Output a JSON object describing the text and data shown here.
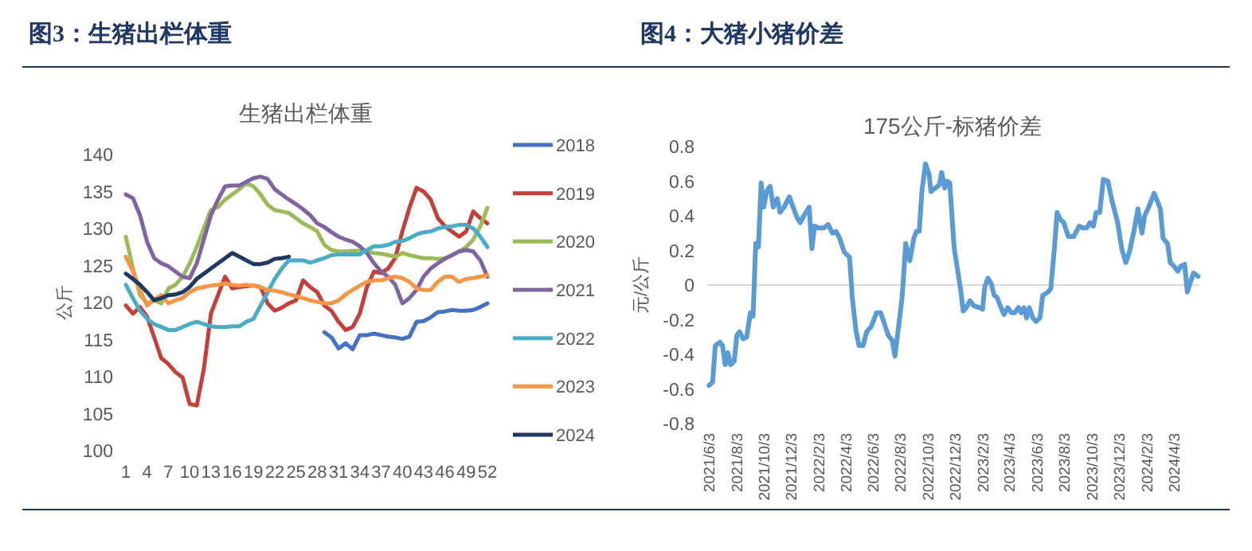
{
  "chart_data": [
    {
      "type": "line",
      "title": "图3：生猪出栏体重",
      "subtitle": "生猪出栏体重",
      "ylabel": "公斤",
      "legend": "right",
      "categories": [
        "1",
        null,
        null,
        "4",
        null,
        null,
        "7",
        null,
        null,
        "10",
        null,
        null,
        "13",
        null,
        null,
        "16",
        null,
        null,
        "19",
        null,
        null,
        "22",
        null,
        null,
        "25",
        null,
        null,
        "28",
        null,
        null,
        "31",
        null,
        null,
        "34",
        null,
        null,
        "37",
        null,
        null,
        "40",
        null,
        null,
        "43",
        null,
        null,
        "46",
        null,
        null,
        "49",
        null,
        null,
        "52"
      ],
      "ylim": [
        100,
        140
      ],
      "yticks": [
        100,
        105,
        110,
        115,
        120,
        125,
        130,
        135,
        140
      ],
      "series": [
        {
          "name": "2018",
          "color": "#4472c4",
          "values": [
            null,
            null,
            null,
            null,
            null,
            null,
            null,
            null,
            null,
            null,
            null,
            null,
            null,
            null,
            null,
            null,
            null,
            null,
            null,
            null,
            null,
            null,
            null,
            null,
            null,
            null,
            null,
            null,
            116.0,
            115.3,
            113.8,
            114.5,
            113.7,
            115.6,
            115.6,
            115.8,
            115.6,
            115.4,
            115.3,
            115.1,
            115.4,
            117.4,
            117.5,
            118.0,
            118.7,
            118.8,
            119.0,
            118.9,
            118.9,
            119.0,
            119.4,
            119.9
          ]
        },
        {
          "name": "2019",
          "color": "#c43e3a",
          "values": [
            119.6,
            118.5,
            119.4,
            118.1,
            115.3,
            112.5,
            111.7,
            110.6,
            109.9,
            106.3,
            106.1,
            111.0,
            118.5,
            121.0,
            123.5,
            121.9,
            122.1,
            122.2,
            122.3,
            122.1,
            119.9,
            118.9,
            119.3,
            119.9,
            120.3,
            123.0,
            122.1,
            121.4,
            119.6,
            118.9,
            117.4,
            116.3,
            116.7,
            118.5,
            122.1,
            124.2,
            124.0,
            124.6,
            126.0,
            129.6,
            132.8,
            135.5,
            135.0,
            133.9,
            131.4,
            130.3,
            129.6,
            128.9,
            129.6,
            132.3,
            131.4,
            130.7
          ]
        },
        {
          "name": "2020",
          "color": "#9bbb59",
          "values": [
            128.9,
            124.6,
            121.0,
            119.9,
            120.3,
            119.9,
            121.9,
            122.4,
            123.5,
            125.3,
            127.5,
            130.0,
            132.5,
            132.9,
            133.9,
            134.6,
            135.3,
            136.1,
            135.7,
            134.6,
            133.2,
            132.5,
            132.3,
            132.1,
            131.4,
            130.7,
            130.2,
            129.6,
            127.8,
            127.1,
            126.9,
            126.9,
            127.0,
            127.0,
            126.9,
            126.7,
            126.6,
            126.4,
            126.2,
            126.7,
            126.4,
            126.2,
            126.0,
            126.0,
            125.9,
            126.0,
            126.4,
            126.9,
            127.5,
            128.5,
            130.3,
            132.8
          ]
        },
        {
          "name": "2021",
          "color": "#8064a2",
          "values": [
            134.6,
            134.1,
            131.8,
            128.2,
            126.0,
            125.3,
            124.9,
            124.2,
            123.5,
            123.3,
            125.3,
            128.5,
            131.8,
            133.9,
            135.7,
            135.8,
            135.8,
            136.3,
            136.8,
            137.0,
            136.7,
            135.3,
            134.6,
            133.9,
            133.3,
            132.6,
            131.8,
            130.7,
            130.2,
            129.5,
            128.9,
            128.5,
            128.2,
            127.6,
            126.7,
            125.3,
            124.2,
            123.5,
            122.4,
            119.9,
            120.6,
            121.7,
            123.5,
            124.6,
            125.3,
            125.9,
            126.4,
            126.9,
            127.1,
            126.9,
            125.7,
            123.5
          ]
        },
        {
          "name": "2022",
          "color": "#4bacc6",
          "values": [
            122.4,
            120.6,
            118.9,
            117.8,
            117.1,
            116.7,
            116.3,
            116.3,
            116.7,
            117.1,
            117.4,
            117.1,
            116.8,
            116.7,
            116.7,
            116.8,
            116.8,
            117.4,
            117.8,
            119.6,
            121.4,
            123.2,
            124.6,
            125.7,
            125.7,
            125.7,
            125.4,
            125.7,
            126.0,
            126.4,
            126.5,
            126.5,
            126.5,
            126.5,
            127.1,
            127.6,
            127.6,
            127.8,
            128.2,
            128.3,
            128.7,
            129.2,
            129.5,
            129.6,
            130.0,
            130.2,
            130.3,
            130.5,
            130.5,
            130.0,
            128.9,
            127.5
          ]
        },
        {
          "name": "2023",
          "color": "#f79646",
          "values": [
            126.2,
            124.2,
            121.7,
            119.6,
            120.4,
            121.0,
            119.9,
            120.3,
            120.6,
            121.4,
            121.9,
            122.1,
            122.3,
            122.4,
            122.6,
            122.4,
            122.3,
            122.4,
            122.3,
            122.1,
            121.7,
            121.6,
            121.4,
            121.1,
            120.9,
            120.6,
            120.3,
            120.1,
            119.9,
            119.9,
            120.3,
            121.1,
            121.7,
            122.3,
            122.8,
            123.0,
            123.0,
            123.3,
            123.5,
            123.3,
            122.8,
            121.9,
            121.7,
            121.7,
            122.8,
            123.5,
            123.5,
            122.8,
            123.2,
            123.3,
            123.5,
            123.7
          ]
        },
        {
          "name": "2024",
          "color": "#1f3864",
          "values": [
            123.9,
            123.2,
            122.4,
            121.4,
            120.3,
            120.6,
            121.0,
            121.1,
            121.4,
            122.1,
            123.2,
            123.9,
            124.6,
            125.3,
            126.0,
            126.7,
            126.2,
            125.7,
            125.2,
            125.2,
            125.4,
            125.9,
            126.0,
            126.2,
            null,
            null,
            null,
            null,
            null,
            null,
            null,
            null,
            null,
            null,
            null,
            null,
            null,
            null,
            null,
            null,
            null,
            null,
            null,
            null,
            null,
            null,
            null,
            null,
            null,
            null,
            null,
            null
          ]
        }
      ]
    },
    {
      "type": "line",
      "title": "图4：大猪小猪价差",
      "subtitle": "175公斤-标猪价差",
      "ylabel": "元/公斤",
      "x": [
        "2021-06-03",
        "2021-06-11",
        "2021-06-17",
        "2021-06-27",
        "2021-07-03",
        "2021-07-09",
        "2021-07-15",
        "2021-07-21",
        "2021-07-29",
        "2021-08-04",
        "2021-08-10",
        "2021-08-18",
        "2021-08-26",
        "2021-09-03",
        "2021-09-09",
        "2021-09-15",
        "2021-09-21",
        "2021-09-27",
        "2021-10-03",
        "2021-10-09",
        "2021-10-17",
        "2021-10-24",
        "2021-11-02",
        "2021-11-08",
        "2021-11-17",
        "2021-11-29",
        "2021-12-07",
        "2021-12-16",
        "2021-12-23",
        "2021-12-31",
        "2022-01-12",
        "2022-01-18",
        "2022-01-24",
        "2022-02-02",
        "2022-02-14",
        "2022-02-23",
        "2022-03-05",
        "2022-03-13",
        "2022-03-21",
        "2022-03-31",
        "2022-04-12",
        "2022-04-18",
        "2022-04-26",
        "2022-05-03",
        "2022-05-12",
        "2022-05-20",
        "2022-05-30",
        "2022-06-11",
        "2022-06-20",
        "2022-06-28",
        "2022-07-07",
        "2022-07-16",
        "2022-07-22",
        "2022-07-31",
        "2022-08-07",
        "2022-08-15",
        "2022-08-24",
        "2022-09-02",
        "2022-09-08",
        "2022-09-14",
        "2022-09-20",
        "2022-09-28",
        "2022-10-06",
        "2022-10-10",
        "2022-10-20",
        "2022-10-29",
        "2022-11-03",
        "2022-11-10",
        "2022-11-15",
        "2022-11-21",
        "2022-12-01",
        "2022-12-09",
        "2022-12-16",
        "2022-12-21",
        "2022-12-28",
        "2023-01-05",
        "2023-01-14",
        "2023-01-26",
        "2023-02-02",
        "2023-02-07",
        "2023-02-14",
        "2023-02-21",
        "2023-02-28",
        "2023-03-06",
        "2023-03-15",
        "2023-03-22",
        "2023-03-30",
        "2023-04-07",
        "2023-04-15",
        "2023-04-23",
        "2023-04-29",
        "2023-05-05",
        "2023-05-11",
        "2023-05-17",
        "2023-05-25",
        "2023-06-01",
        "2023-06-10",
        "2023-06-16",
        "2023-06-28",
        "2023-07-04",
        "2023-07-12",
        "2023-07-18",
        "2023-07-25",
        "2023-08-02",
        "2023-08-12",
        "2023-08-24",
        "2023-09-05",
        "2023-09-13",
        "2023-09-22",
        "2023-09-29",
        "2023-10-07",
        "2023-10-13",
        "2023-10-21",
        "2023-10-29",
        "2023-11-08",
        "2023-11-18",
        "2023-11-30",
        "2023-12-09",
        "2023-12-18",
        "2023-12-26",
        "2024-01-05",
        "2024-01-14",
        "2024-01-23",
        "2024-01-29",
        "2024-02-07",
        "2024-02-19",
        "2024-02-27",
        "2024-03-04",
        "2024-03-10",
        "2024-03-20",
        "2024-03-26",
        "2024-04-03",
        "2024-04-12",
        "2024-04-19",
        "2024-04-27",
        "2024-05-03",
        "2024-05-09",
        "2024-05-17",
        "2024-05-27"
      ],
      "xlim": [
        "2021-05-30",
        "2024-05-30"
      ],
      "xticks": [
        {
          "value": "2021-06-03",
          "label": "2021/6/3"
        },
        {
          "value": "2021-08-03",
          "label": "2021/8/3"
        },
        {
          "value": "2021-10-03",
          "label": "2021/10/3"
        },
        {
          "value": "2021-12-03",
          "label": "2021/12/3"
        },
        {
          "value": "2022-02-03",
          "label": "2022/2/3"
        },
        {
          "value": "2022-04-03",
          "label": "2022/4/3"
        },
        {
          "value": "2022-06-03",
          "label": "2022/6/3"
        },
        {
          "value": "2022-08-03",
          "label": "2022/8/3"
        },
        {
          "value": "2022-10-03",
          "label": "2022/10/3"
        },
        {
          "value": "2022-12-03",
          "label": "2022/12/3"
        },
        {
          "value": "2023-02-03",
          "label": "2023/2/3"
        },
        {
          "value": "2023-04-03",
          "label": "2023/4/3"
        },
        {
          "value": "2023-06-03",
          "label": "2023/6/3"
        },
        {
          "value": "2023-08-03",
          "label": "2023/8/3"
        },
        {
          "value": "2023-10-03",
          "label": "2023/10/3"
        },
        {
          "value": "2023-12-03",
          "label": "2023/12/3"
        },
        {
          "value": "2024-02-03",
          "label": "2024/2/3"
        },
        {
          "value": "2024-04-03",
          "label": "2024/4/3"
        }
      ],
      "ylim": [
        -0.8,
        0.8
      ],
      "yticks": [
        -0.8,
        -0.6,
        -0.4,
        -0.2,
        0,
        0.2,
        0.4,
        0.6,
        0.8
      ],
      "series": [
        {
          "color": "#5b9bd5",
          "values": [
            -0.58,
            -0.56,
            -0.35,
            -0.33,
            -0.35,
            -0.46,
            -0.39,
            -0.46,
            -0.44,
            -0.29,
            -0.27,
            -0.31,
            -0.3,
            -0.16,
            -0.18,
            0.24,
            0.22,
            0.59,
            0.45,
            0.54,
            0.57,
            0.45,
            0.5,
            0.42,
            0.45,
            0.51,
            0.45,
            0.39,
            0.36,
            0.4,
            0.45,
            0.21,
            0.34,
            0.33,
            0.33,
            0.35,
            0.3,
            0.31,
            0.27,
            0.19,
            0.16,
            -0.07,
            -0.26,
            -0.35,
            -0.35,
            -0.27,
            -0.24,
            -0.16,
            -0.16,
            -0.22,
            -0.29,
            -0.32,
            -0.41,
            -0.22,
            -0.07,
            0.24,
            0.14,
            0.27,
            0.31,
            0.31,
            0.54,
            0.7,
            0.64,
            0.54,
            0.56,
            0.58,
            0.65,
            0.56,
            0.6,
            0.59,
            0.21,
            0.08,
            -0.04,
            -0.15,
            -0.13,
            -0.09,
            -0.12,
            -0.13,
            -0.14,
            -0.01,
            0.04,
            0.01,
            -0.06,
            -0.07,
            -0.13,
            -0.17,
            -0.13,
            -0.16,
            -0.16,
            -0.13,
            -0.16,
            -0.13,
            -0.19,
            -0.13,
            -0.19,
            -0.21,
            -0.19,
            -0.06,
            -0.04,
            -0.02,
            0.21,
            0.42,
            0.38,
            0.36,
            0.28,
            0.28,
            0.34,
            0.33,
            0.33,
            0.36,
            0.34,
            0.42,
            0.42,
            0.61,
            0.6,
            0.48,
            0.36,
            0.21,
            0.13,
            0.19,
            0.31,
            0.44,
            0.3,
            0.4,
            0.45,
            0.53,
            0.48,
            0.44,
            0.27,
            0.24,
            0.13,
            0.11,
            0.08,
            0.11,
            0.12,
            -0.04,
            0.01,
            0.07,
            0.05
          ]
        }
      ]
    }
  ]
}
